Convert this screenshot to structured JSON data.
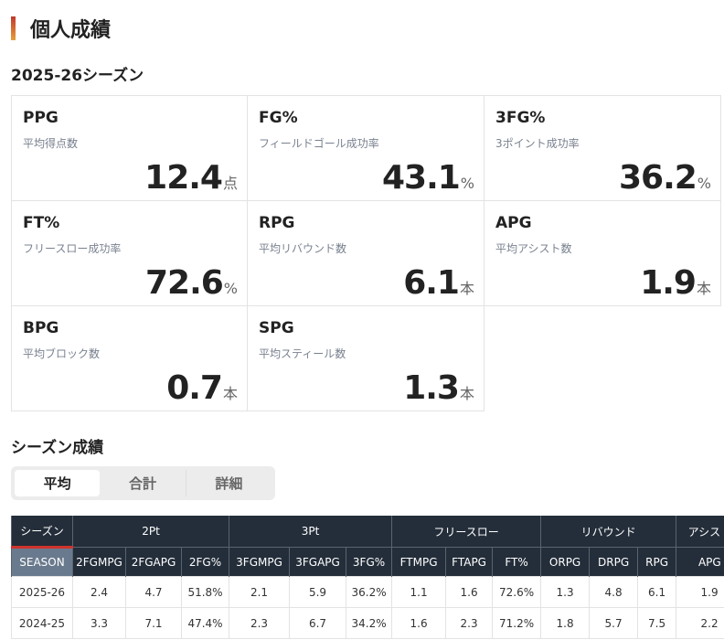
{
  "header": {
    "title": "個人成績"
  },
  "season_title": "2025-26シーズン",
  "stats": [
    {
      "label": "PPG",
      "description": "平均得点数",
      "value": 12.4,
      "unit": "点"
    },
    {
      "label": "FG%",
      "description": "フィールドゴール成功率",
      "value": 43.1,
      "unit": "%"
    },
    {
      "label": "3FG%",
      "description": "3ポイント成功率",
      "value": 36.2,
      "unit": "%"
    },
    {
      "label": "FT%",
      "description": "フリースロー成功率",
      "value": 72.6,
      "unit": "%"
    },
    {
      "label": "RPG",
      "description": "平均リバウンド数",
      "value": 6.1,
      "unit": "本"
    },
    {
      "label": "APG",
      "description": "平均アシスト数",
      "value": 1.9,
      "unit": "本"
    },
    {
      "label": "BPG",
      "description": "平均ブロック数",
      "value": 0.7,
      "unit": "本"
    },
    {
      "label": "SPG",
      "description": "平均スティール数",
      "value": 1.3,
      "unit": "本"
    }
  ],
  "season_section": {
    "title": "シーズン成績",
    "tabs": [
      "平均",
      "合計",
      "詳細"
    ]
  },
  "table": {
    "group_headers": [
      "シーズン",
      "2Pt",
      "3Pt",
      "フリースロー",
      "リバウンド",
      "アシスト"
    ],
    "column_headers": [
      "SEASON",
      "2FGMPG",
      "2FGAPG",
      "2FG%",
      "3FGMPG",
      "3FGAPG",
      "3FG%",
      "FTMPG",
      "FTAPG",
      "FT%",
      "ORPG",
      "DRPG",
      "RPG",
      "APG"
    ],
    "rows": [
      [
        "2025-26",
        "2.4",
        "4.7",
        "51.8%",
        "2.1",
        "5.9",
        "36.2%",
        "1.1",
        "1.6",
        "72.6%",
        "1.3",
        "4.8",
        "6.1",
        "1.9"
      ],
      [
        "2024-25",
        "3.3",
        "7.1",
        "47.4%",
        "2.3",
        "6.7",
        "34.2%",
        "1.6",
        "2.3",
        "71.2%",
        "1.8",
        "5.7",
        "7.5",
        "2.2"
      ]
    ]
  }
}
